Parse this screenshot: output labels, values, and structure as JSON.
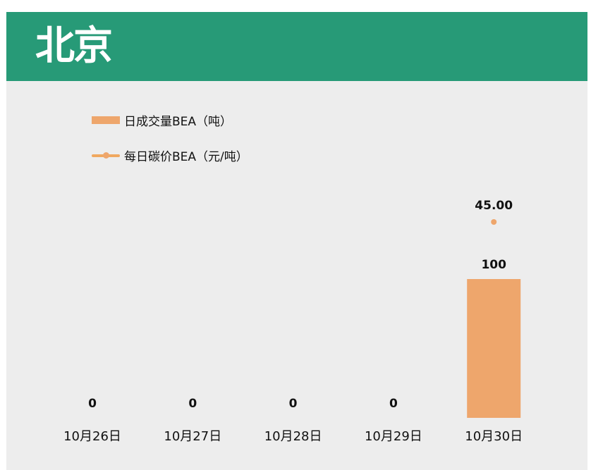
{
  "header": {
    "title": "北京"
  },
  "colors": {
    "header_bg": "#279a77",
    "panel_bg": "#ededed",
    "bar": "#eea66c",
    "line": "#eea66c"
  },
  "chart_data": {
    "type": "bar+line",
    "categories": [
      "10月26日",
      "10月27日",
      "10月28日",
      "10月29日",
      "10月30日"
    ],
    "series": [
      {
        "name": "日成交量BEA（吨）",
        "type": "bar",
        "axis": "primary",
        "values": [
          0,
          0,
          0,
          0,
          100
        ],
        "labels": [
          "0",
          "0",
          "0",
          "0",
          "100"
        ]
      },
      {
        "name": "每日碳价BEA（元/吨）",
        "type": "line",
        "axis": "secondary",
        "values": [
          null,
          null,
          null,
          null,
          45.0
        ],
        "labels": [
          "",
          "",
          "",
          "",
          "45.00"
        ]
      }
    ],
    "legend": "top-left",
    "grid": false,
    "axes_visible": false
  }
}
